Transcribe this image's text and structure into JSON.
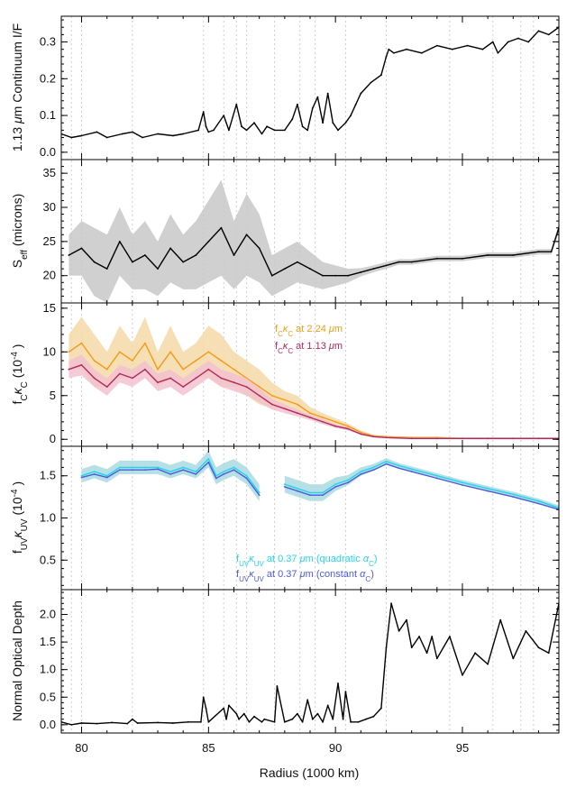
{
  "chart_data": {
    "type": "line",
    "xlabel": "Radius (1000 km)",
    "xlim": [
      79.2,
      98.8
    ],
    "x_ticks": [
      "80",
      "85",
      "90",
      "95"
    ],
    "x_tick_values": [
      80,
      85,
      90,
      95
    ],
    "panels": [
      {
        "id": "continuum",
        "ylabel": "1.13 μm Continuum I/F",
        "ylim": [
          -0.02,
          0.37
        ],
        "y_ticks": [
          "0.0",
          "0.1",
          "0.2",
          "0.3"
        ],
        "y_tick_values": [
          0,
          0.1,
          0.2,
          0.3
        ],
        "series": [
          {
            "color": "#000000",
            "style": "line",
            "x": [
              79.2,
              79.6,
              80.0,
              80.6,
              81.0,
              81.6,
              82.0,
              82.4,
              83.0,
              83.6,
              84.0,
              84.6,
              84.8,
              84.9,
              85.0,
              85.2,
              85.6,
              85.8,
              86.1,
              86.3,
              86.5,
              86.8,
              87.1,
              87.3,
              87.6,
              88.0,
              88.3,
              88.5,
              88.7,
              88.9,
              89.1,
              89.3,
              89.5,
              89.7,
              89.9,
              90.1,
              90.4,
              90.6,
              90.8,
              91.0,
              91.4,
              91.8,
              92.0,
              92.1,
              92.3,
              92.8,
              93.4,
              94.0,
              94.6,
              95.2,
              95.8,
              96.2,
              96.4,
              96.8,
              97.2,
              97.6,
              98.0,
              98.4,
              98.8
            ],
            "y": [
              0.05,
              0.04,
              0.045,
              0.055,
              0.04,
              0.05,
              0.055,
              0.04,
              0.05,
              0.045,
              0.05,
              0.06,
              0.11,
              0.07,
              0.055,
              0.06,
              0.1,
              0.06,
              0.13,
              0.07,
              0.06,
              0.08,
              0.05,
              0.07,
              0.06,
              0.06,
              0.09,
              0.13,
              0.07,
              0.06,
              0.12,
              0.15,
              0.08,
              0.16,
              0.08,
              0.06,
              0.08,
              0.1,
              0.13,
              0.16,
              0.19,
              0.21,
              0.26,
              0.28,
              0.27,
              0.28,
              0.27,
              0.29,
              0.28,
              0.29,
              0.28,
              0.3,
              0.27,
              0.3,
              0.31,
              0.3,
              0.33,
              0.32,
              0.34
            ]
          }
        ]
      },
      {
        "id": "seff",
        "ylabel": "S_eff (microns)",
        "ylim": [
          16,
          37
        ],
        "y_ticks": [
          "20",
          "25",
          "30",
          "35"
        ],
        "y_tick_values": [
          20,
          25,
          30,
          35
        ],
        "series": [
          {
            "color": "#000000",
            "band_color": "#c8c8c8",
            "style": "band-line",
            "x": [
              79.5,
              80.0,
              80.5,
              81.0,
              81.5,
              82.0,
              82.5,
              83.0,
              83.5,
              84.0,
              84.5,
              85.0,
              85.5,
              86.0,
              86.5,
              87.0,
              87.5,
              88.0,
              88.5,
              89.0,
              89.5,
              90.0,
              90.5,
              91.0,
              91.5,
              92.0,
              92.5,
              93.0,
              94.0,
              95.0,
              96.0,
              97.0,
              98.0,
              98.5,
              98.8
            ],
            "y": [
              23,
              24,
              22,
              21,
              25,
              22,
              23,
              21,
              24,
              22,
              23,
              25,
              27,
              23,
              26,
              24,
              20,
              21,
              22,
              21,
              20,
              20,
              20,
              20.5,
              21,
              21.5,
              22,
              22,
              22.5,
              22.5,
              23,
              23,
              23.5,
              23.5,
              27
            ],
            "err": [
              3,
              4,
              5,
              5,
              5,
              4,
              5,
              4,
              5,
              4,
              5,
              6,
              7,
              5,
              6,
              5,
              3,
              3,
              3,
              2.5,
              2,
              1.5,
              1,
              0.6,
              0.5,
              0.5,
              0.4,
              0.4,
              0.4,
              0.4,
              0.4,
              0.4,
              0.4,
              0.4,
              0.6
            ]
          }
        ]
      },
      {
        "id": "fckc",
        "ylabel": "f_C κ_C (10^-4)",
        "ylim": [
          -0.8,
          15.6
        ],
        "y_ticks": [
          "0",
          "5",
          "10",
          "15"
        ],
        "y_tick_values": [
          0,
          5,
          10,
          15
        ],
        "series": [
          {
            "name": "f_C κ_C at 2.24 μm",
            "color": "#f59a16",
            "band_color": "#f6d9a8",
            "style": "band-line",
            "x": [
              79.5,
              80.0,
              80.5,
              81.0,
              81.5,
              82.0,
              82.5,
              83.0,
              83.5,
              84.0,
              84.5,
              85.0,
              85.5,
              86.0,
              86.5,
              87.0,
              87.5,
              88.0,
              88.5,
              89.0,
              89.5,
              90.0,
              90.5,
              91.0,
              91.5,
              92.0,
              93.0,
              94.0,
              95.0,
              96.0,
              97.0,
              98.0,
              98.8
            ],
            "y": [
              10,
              11,
              9,
              8,
              10,
              9,
              11,
              8,
              10,
              8,
              9,
              10,
              9,
              8,
              7,
              6,
              5,
              4.5,
              4,
              3,
              2.5,
              2,
              1.5,
              0.8,
              0.4,
              0.3,
              0.2,
              0.2,
              0.1,
              0.1,
              0.1,
              0.1,
              0.1
            ],
            "err": [
              2,
              3,
              3,
              2,
              3,
              2,
              3,
              2,
              3,
              2,
              2,
              3,
              3,
              2,
              2,
              2,
              1.5,
              1,
              1,
              0.7,
              0.5,
              0.4,
              0.3,
              0.2,
              0.1,
              0.1,
              0.1,
              0.1,
              0.1,
              0.1,
              0.1,
              0.1,
              0.1
            ]
          },
          {
            "name": "f_C κ_C at 1.13 μm",
            "color": "#b02a5a",
            "band_color": "#f2c2cf",
            "style": "band-line",
            "x": [
              79.5,
              80.0,
              80.5,
              81.0,
              81.5,
              82.0,
              82.5,
              83.0,
              83.5,
              84.0,
              84.5,
              85.0,
              85.5,
              86.0,
              86.5,
              87.0,
              87.5,
              88.0,
              88.5,
              89.0,
              89.5,
              90.0,
              90.5,
              91.0,
              91.5,
              92.0,
              93.0,
              94.0,
              95.0,
              96.0,
              97.0,
              98.0,
              98.8
            ],
            "y": [
              8,
              8.5,
              7,
              6,
              7.5,
              7,
              8,
              6.5,
              7,
              6,
              7,
              8,
              7,
              6.5,
              6,
              5,
              4,
              3.5,
              3,
              2.5,
              2,
              1.5,
              1.2,
              0.6,
              0.3,
              0.2,
              0.1,
              0.1,
              0.1,
              0.1,
              0.1,
              0.1,
              0.1
            ],
            "err": [
              1,
              1.2,
              1,
              1,
              1,
              1,
              1,
              1,
              1,
              1,
              1,
              1,
              1,
              1,
              1,
              0.8,
              0.6,
              0.5,
              0.4,
              0.3,
              0.3,
              0.2,
              0.2,
              0.1,
              0.1,
              0.1,
              0.1,
              0.1,
              0.1,
              0.1,
              0.1,
              0.1,
              0.1
            ]
          }
        ]
      },
      {
        "id": "fuvkuv",
        "ylabel": "f_UV κ_UV (10^-4)",
        "ylim": [
          0.15,
          1.85
        ],
        "y_ticks": [
          "0.5",
          "1.0",
          "1.5"
        ],
        "y_tick_values": [
          0.5,
          1.0,
          1.5
        ],
        "series": [
          {
            "name": "f_UV κ_UV at 0.37 μm (quadratic α_C)",
            "color": "#22d4ee",
            "band_color": "#a9dbe0",
            "style": "band-line",
            "x": [
              80.0,
              80.5,
              81.0,
              81.5,
              82.0,
              82.5,
              83.0,
              83.5,
              84.0,
              84.5,
              85.0,
              85.3,
              85.6,
              86.0,
              86.5,
              87.0,
              87.5,
              88.0,
              88.5,
              89.0,
              89.5,
              90.0,
              90.5,
              91.0,
              91.5,
              92.0,
              92.5,
              93.0,
              94.0,
              95.0,
              96.0,
              97.0,
              98.0,
              98.8
            ],
            "y": [
              1.5,
              1.55,
              1.5,
              1.6,
              1.6,
              1.6,
              1.6,
              1.55,
              1.6,
              1.55,
              1.7,
              1.5,
              1.55,
              1.6,
              1.5,
              1.3,
              null,
              1.4,
              1.35,
              1.3,
              1.3,
              1.4,
              1.45,
              1.55,
              1.6,
              1.67,
              1.62,
              1.58,
              1.5,
              1.42,
              1.35,
              1.28,
              1.2,
              1.12
            ],
            "err": [
              0.08,
              0.08,
              0.08,
              0.08,
              0.08,
              0.08,
              0.08,
              0.08,
              0.08,
              0.08,
              0.1,
              0.1,
              0.1,
              0.1,
              0.1,
              0.1,
              null,
              0.1,
              0.1,
              0.1,
              0.1,
              0.08,
              0.06,
              0.05,
              0.04,
              0.04,
              0.03,
              0.03,
              0.03,
              0.03,
              0.03,
              0.03,
              0.03,
              0.03
            ]
          },
          {
            "name": "f_UV κ_UV at 0.37 μm (constant α_C)",
            "color": "#4d5bd9",
            "style": "line",
            "x": [
              80.0,
              80.5,
              81.0,
              81.5,
              82.0,
              82.5,
              83.0,
              83.5,
              84.0,
              84.5,
              85.0,
              85.3,
              85.6,
              86.0,
              86.5,
              87.0,
              87.5,
              88.0,
              88.5,
              89.0,
              89.5,
              90.0,
              90.5,
              91.0,
              91.5,
              92.0,
              92.5,
              93.0,
              94.0,
              95.0,
              96.0,
              97.0,
              98.0,
              98.8
            ],
            "y": [
              1.48,
              1.52,
              1.48,
              1.57,
              1.57,
              1.57,
              1.58,
              1.52,
              1.57,
              1.52,
              1.66,
              1.47,
              1.52,
              1.57,
              1.47,
              1.27,
              null,
              1.37,
              1.32,
              1.27,
              1.27,
              1.37,
              1.42,
              1.52,
              1.57,
              1.64,
              1.59,
              1.55,
              1.47,
              1.39,
              1.32,
              1.25,
              1.17,
              1.1
            ]
          }
        ]
      },
      {
        "id": "tau",
        "ylabel": "Normal Optical Depth",
        "ylim": [
          -0.15,
          2.45
        ],
        "y_ticks": [
          "0.0",
          "0.5",
          "1.0",
          "1.5",
          "2.0"
        ],
        "y_tick_values": [
          0,
          0.5,
          1.0,
          1.5,
          2.0
        ],
        "series": [
          {
            "color": "#000000",
            "style": "line",
            "x": [
              79.2,
              79.6,
              80.0,
              80.6,
              81.2,
              81.8,
              82.0,
              82.2,
              83.0,
              83.6,
              84.2,
              84.7,
              84.8,
              84.9,
              85.0,
              85.6,
              85.7,
              85.8,
              86.1,
              86.2,
              86.4,
              86.6,
              86.8,
              87.1,
              87.2,
              87.6,
              87.7,
              88.0,
              88.3,
              88.5,
              88.7,
              88.9,
              89.1,
              89.3,
              89.5,
              89.7,
              89.9,
              90.1,
              90.3,
              90.4,
              90.6,
              90.9,
              91.2,
              91.5,
              91.8,
              92.0,
              92.2,
              92.5,
              92.8,
              93.0,
              93.3,
              93.6,
              93.8,
              94.0,
              94.5,
              95.0,
              95.5,
              96.0,
              96.5,
              97.0,
              97.5,
              98.0,
              98.4,
              98.8
            ],
            "y": [
              0.05,
              0.0,
              0.03,
              0.02,
              0.04,
              0.02,
              0.1,
              0.03,
              0.04,
              0.03,
              0.05,
              0.05,
              0.5,
              0.3,
              0.05,
              0.3,
              0.1,
              0.35,
              0.2,
              0.1,
              0.2,
              0.05,
              0.15,
              0.05,
              0.1,
              0.05,
              0.7,
              0.05,
              0.1,
              0.2,
              0.05,
              0.45,
              0.1,
              0.2,
              0.05,
              0.35,
              0.1,
              0.75,
              0.1,
              0.6,
              0.05,
              0.05,
              0.1,
              0.15,
              0.3,
              1.4,
              2.2,
              1.7,
              1.9,
              1.4,
              1.6,
              1.3,
              1.6,
              1.2,
              1.6,
              0.9,
              1.3,
              1.1,
              1.9,
              1.2,
              1.7,
              1.4,
              1.3,
              2.2
            ]
          }
        ]
      }
    ]
  }
}
